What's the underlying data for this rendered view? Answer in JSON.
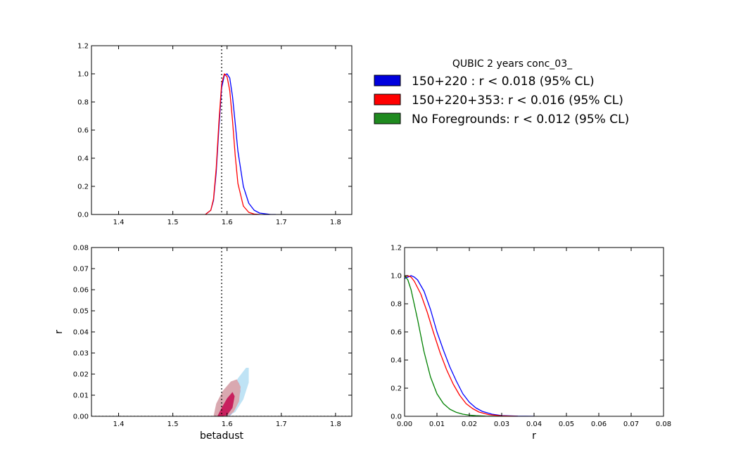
{
  "chart_data": [
    {
      "type": "line",
      "panel": "top-left",
      "title": "",
      "xlabel": "",
      "ylabel": "",
      "xlim": [
        1.35,
        1.83
      ],
      "ylim": [
        0.0,
        1.2
      ],
      "xticks": [
        1.4,
        1.5,
        1.6,
        1.7,
        1.8
      ],
      "xtick_labels": [
        "1.4",
        "1.5",
        "1.6",
        "1.7",
        "1.8"
      ],
      "yticks": [
        0.0,
        0.2,
        0.4,
        0.6,
        0.8,
        1.0,
        1.2
      ],
      "ytick_labels": [
        "0.0",
        "0.2",
        "0.4",
        "0.6",
        "0.8",
        "1.0",
        "1.2"
      ],
      "vline": 1.59,
      "series": [
        {
          "name": "150+220",
          "color": "#0000ff",
          "x": [
            1.56,
            1.57,
            1.575,
            1.58,
            1.585,
            1.59,
            1.595,
            1.6,
            1.605,
            1.61,
            1.615,
            1.62,
            1.63,
            1.64,
            1.65,
            1.66,
            1.68,
            1.69
          ],
          "y": [
            0.0,
            0.03,
            0.1,
            0.3,
            0.62,
            0.9,
            0.99,
            1.0,
            0.97,
            0.84,
            0.65,
            0.45,
            0.2,
            0.08,
            0.03,
            0.01,
            0.0,
            0.0
          ]
        },
        {
          "name": "150+220+353",
          "color": "#ff0000",
          "x": [
            1.56,
            1.57,
            1.575,
            1.58,
            1.585,
            1.59,
            1.595,
            1.6,
            1.605,
            1.61,
            1.615,
            1.62,
            1.63,
            1.64,
            1.65,
            1.66
          ],
          "y": [
            0.0,
            0.03,
            0.11,
            0.33,
            0.66,
            0.93,
            1.0,
            0.98,
            0.88,
            0.67,
            0.42,
            0.22,
            0.06,
            0.015,
            0.003,
            0.0
          ]
        }
      ]
    },
    {
      "type": "contour",
      "panel": "bottom-left",
      "title": "",
      "xlabel": "betadust",
      "ylabel": "r",
      "xlim": [
        1.35,
        1.83
      ],
      "ylim": [
        0.0,
        0.08
      ],
      "xticks": [
        1.4,
        1.5,
        1.6,
        1.7,
        1.8
      ],
      "xtick_labels": [
        "1.4",
        "1.5",
        "1.6",
        "1.7",
        "1.8"
      ],
      "yticks": [
        0.0,
        0.01,
        0.02,
        0.03,
        0.04,
        0.05,
        0.06,
        0.07,
        0.08
      ],
      "ytick_labels": [
        "0.00",
        "0.01",
        "0.02",
        "0.03",
        "0.04",
        "0.05",
        "0.06",
        "0.07",
        "0.08"
      ],
      "vline": 1.59,
      "hline": 0.0,
      "regions": [
        {
          "name": "150+220 95%",
          "color": "#bfe3f5",
          "x": [
            1.575,
            1.585,
            1.6,
            1.62,
            1.635,
            1.64,
            1.64,
            1.63,
            1.615,
            1.6,
            1.585,
            1.577
          ],
          "y": [
            0.0,
            0.004,
            0.01,
            0.018,
            0.023,
            0.023,
            0.016,
            0.008,
            0.002,
            0.0,
            0.0,
            0.0
          ]
        },
        {
          "name": "150+220 68%",
          "color": "#a6b7e6",
          "x": [
            1.585,
            1.595,
            1.61,
            1.622,
            1.625,
            1.618,
            1.607,
            1.595,
            1.587
          ],
          "y": [
            0.0,
            0.006,
            0.013,
            0.016,
            0.012,
            0.005,
            0.0005,
            0.0,
            0.0
          ]
        },
        {
          "name": "150+220+353 95%",
          "color": "#d9a8b0",
          "x": [
            1.575,
            1.58,
            1.592,
            1.607,
            1.618,
            1.625,
            1.622,
            1.612,
            1.6,
            1.588,
            1.578
          ],
          "y": [
            0.0,
            0.006,
            0.012,
            0.0165,
            0.0175,
            0.014,
            0.007,
            0.002,
            0.0,
            0.0,
            0.0
          ]
        },
        {
          "name": "150+220+353 68%",
          "color": "#c8205e",
          "x": [
            1.582,
            1.59,
            1.6,
            1.61,
            1.614,
            1.61,
            1.6,
            1.59,
            1.584
          ],
          "y": [
            0.0,
            0.004,
            0.0085,
            0.0115,
            0.0095,
            0.004,
            0.0005,
            0.0,
            0.0
          ]
        }
      ]
    },
    {
      "type": "line",
      "panel": "bottom-right",
      "title": "",
      "xlabel": "r",
      "ylabel": "",
      "xlim": [
        0.0,
        0.08
      ],
      "ylim": [
        0.0,
        1.2
      ],
      "xticks": [
        0.0,
        0.01,
        0.02,
        0.03,
        0.04,
        0.05,
        0.06,
        0.07,
        0.08
      ],
      "xtick_labels": [
        "0.00",
        "0.01",
        "0.02",
        "0.03",
        "0.04",
        "0.05",
        "0.06",
        "0.07",
        "0.08"
      ],
      "yticks": [
        0.0,
        0.2,
        0.4,
        0.6,
        0.8,
        1.0,
        1.2
      ],
      "ytick_labels": [
        "0.0",
        "0.2",
        "0.4",
        "0.6",
        "0.8",
        "1.0",
        "1.2"
      ],
      "series": [
        {
          "name": "150+220",
          "color": "#0000ff",
          "x": [
            0.0,
            0.001,
            0.002,
            0.003,
            0.004,
            0.006,
            0.008,
            0.01,
            0.012,
            0.014,
            0.016,
            0.018,
            0.02,
            0.022,
            0.024,
            0.027,
            0.03,
            0.035,
            0.04
          ],
          "y": [
            0.98,
            0.99,
            1.0,
            0.99,
            0.97,
            0.89,
            0.76,
            0.6,
            0.47,
            0.35,
            0.25,
            0.16,
            0.1,
            0.06,
            0.035,
            0.015,
            0.005,
            0.001,
            0.0
          ]
        },
        {
          "name": "150+220+353",
          "color": "#ff0000",
          "x": [
            0.0,
            0.001,
            0.002,
            0.003,
            0.005,
            0.007,
            0.009,
            0.011,
            0.013,
            0.015,
            0.017,
            0.019,
            0.021,
            0.023,
            0.026,
            0.03,
            0.035
          ],
          "y": [
            0.99,
            1.0,
            0.99,
            0.96,
            0.87,
            0.74,
            0.59,
            0.45,
            0.33,
            0.23,
            0.15,
            0.09,
            0.055,
            0.03,
            0.012,
            0.003,
            0.0
          ]
        },
        {
          "name": "No Foregrounds",
          "color": "#008000",
          "x": [
            0.0,
            0.001,
            0.002,
            0.004,
            0.006,
            0.008,
            0.01,
            0.012,
            0.014,
            0.016,
            0.018,
            0.02,
            0.022,
            0.025,
            0.03
          ],
          "y": [
            1.0,
            0.97,
            0.9,
            0.69,
            0.46,
            0.28,
            0.16,
            0.09,
            0.05,
            0.028,
            0.015,
            0.008,
            0.004,
            0.001,
            0.0
          ]
        }
      ]
    }
  ],
  "legend": {
    "title": "QUBIC 2 years conc_03_",
    "entries": [
      {
        "label": "150+220 : r < 0.018 (95% CL)",
        "color": "#0000dd"
      },
      {
        "label": "150+220+353: r < 0.016 (95% CL)",
        "color": "#ff0000"
      },
      {
        "label": "No Foregrounds: r < 0.012 (95% CL)",
        "color": "#1f8a1f"
      }
    ]
  }
}
